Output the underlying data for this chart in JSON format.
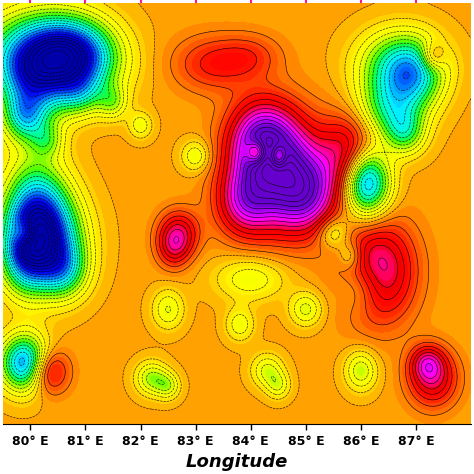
{
  "lon_min": 79.5,
  "lon_max": 88.0,
  "lat_min": 5.0,
  "lat_max": 10.5,
  "xlabel": "Longitude",
  "xlabel_style": "italic",
  "xlabel_fontsize": 13,
  "xtick_labels": [
    "80° E",
    "81° E",
    "82° E",
    "83° E",
    "84° E",
    "85° E",
    "86° E",
    "87° E"
  ],
  "xtick_positions": [
    80,
    81,
    82,
    83,
    84,
    85,
    86,
    87
  ],
  "background_color": "#FFFFFF",
  "contour_linewidth": 0.45,
  "contour_color": "black",
  "vmin": -100,
  "vmax": 60,
  "seed": 42,
  "cmap_colors": [
    [
      0.0,
      "#0000AA"
    ],
    [
      0.08,
      "#0000EE"
    ],
    [
      0.14,
      "#0055FF"
    ],
    [
      0.19,
      "#00AAFF"
    ],
    [
      0.24,
      "#00EEFF"
    ],
    [
      0.29,
      "#00FFCC"
    ],
    [
      0.34,
      "#00FF66"
    ],
    [
      0.38,
      "#44FF00"
    ],
    [
      0.43,
      "#AAFF00"
    ],
    [
      0.47,
      "#EEFF00"
    ],
    [
      0.51,
      "#FFFF00"
    ],
    [
      0.55,
      "#FFDD00"
    ],
    [
      0.59,
      "#FFAA00"
    ],
    [
      0.63,
      "#FF7700"
    ],
    [
      0.67,
      "#FF4400"
    ],
    [
      0.71,
      "#FF1100"
    ],
    [
      0.74,
      "#FF0000"
    ],
    [
      0.77,
      "#EE0000"
    ],
    [
      0.8,
      "#FF0055"
    ],
    [
      0.84,
      "#FF00AA"
    ],
    [
      0.88,
      "#FF00FF"
    ],
    [
      0.92,
      "#CC00FF"
    ],
    [
      0.96,
      "#9900EE"
    ],
    [
      1.0,
      "#6600CC"
    ]
  ]
}
